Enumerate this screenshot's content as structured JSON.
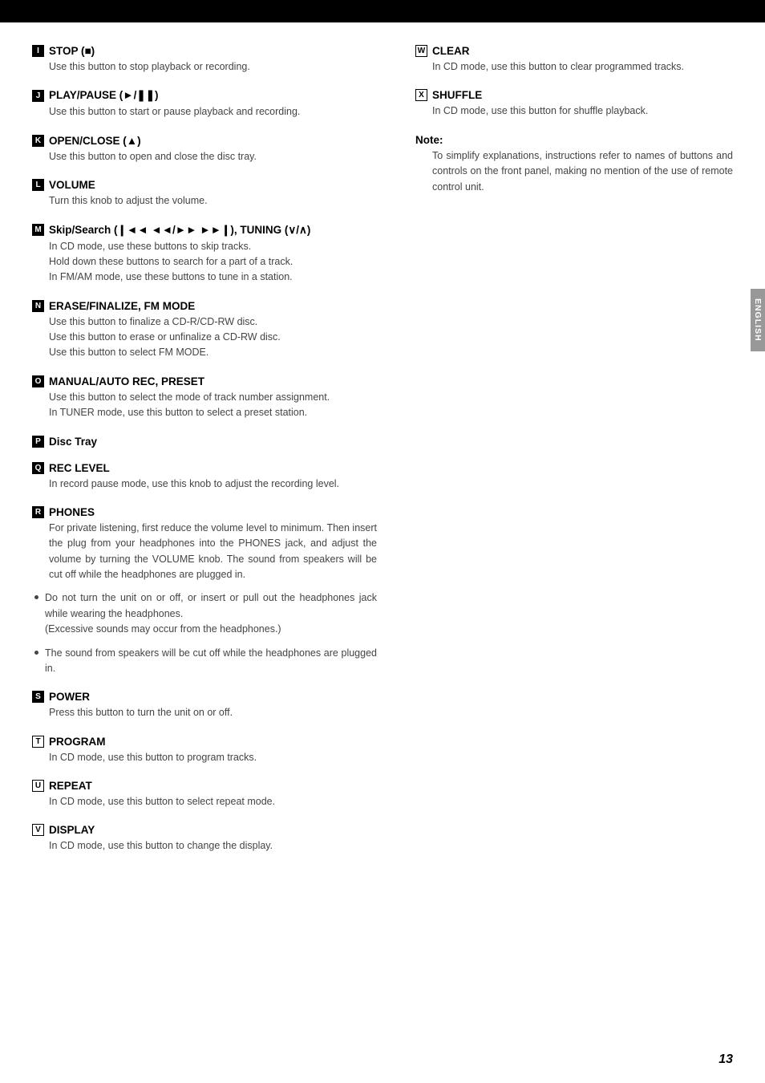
{
  "left": [
    {
      "letter": "I",
      "boxStyle": "filled",
      "label": "STOP (<span class='icon'>■</span>)",
      "desc": [
        "Use this button to stop playback or recording."
      ]
    },
    {
      "letter": "J",
      "boxStyle": "filled",
      "label": "PLAY/PAUSE (<span class='icon'>►/❚❚</span>)",
      "desc": [
        "Use this button to start or pause playback and recording."
      ]
    },
    {
      "letter": "K",
      "boxStyle": "filled",
      "label": "OPEN/CLOSE (<span class='icon'>▲</span>)",
      "desc": [
        "Use this button to open and close the disc tray."
      ]
    },
    {
      "letter": "L",
      "boxStyle": "filled",
      "label": "VOLUME",
      "desc": [
        "Turn this knob to adjust the volume."
      ]
    },
    {
      "letter": "M",
      "boxStyle": "filled",
      "label": "Skip/Search (<span class='icon'>❙◄◄ ◄◄/►► ►►❙</span>), TUNING (<span class='icon'>∨/∧</span>)",
      "desc": [
        "In CD mode, use these buttons to skip tracks.",
        "Hold down these buttons to search for a part of a track.",
        "In FM/AM mode, use these buttons to tune in a station."
      ]
    },
    {
      "letter": "N",
      "boxStyle": "filled",
      "label": "ERASE/FINALIZE, FM MODE",
      "desc": [
        "Use this button to finalize a CD-R/CD-RW disc.",
        "Use this button to erase or unfinalize a CD-RW disc.",
        "Use this button to select FM MODE."
      ]
    },
    {
      "letter": "O",
      "boxStyle": "filled",
      "label": "MANUAL/AUTO REC, PRESET",
      "desc": [
        "Use this button to select the mode of track number assignment.",
        "In TUNER mode, use this button to select a preset station."
      ]
    },
    {
      "letter": "P",
      "boxStyle": "filled",
      "label": "Disc Tray",
      "desc": []
    },
    {
      "letter": "Q",
      "boxStyle": "filled",
      "label": "REC LEVEL",
      "desc": [
        "In record pause mode, use this knob to adjust the recording level."
      ]
    },
    {
      "letter": "R",
      "boxStyle": "filled",
      "label": "PHONES",
      "desc": [
        "For private listening, first reduce the volume level to minimum. Then insert the plug from your headphones into the PHONES jack, and adjust the volume by turning the VOLUME knob. The sound from speakers will be cut off while the headphones are plugged in."
      ],
      "justify": true,
      "bullets": [
        "Do not turn the unit on or off, or insert or pull out the headphones jack while wearing the headphones.<br>(Excessive sounds may occur from the headphones.)",
        "The sound from speakers will be cut off while the headphones are plugged in."
      ]
    },
    {
      "letter": "S",
      "boxStyle": "filled",
      "label": "POWER",
      "desc": [
        "Press this button to turn the unit on or off."
      ]
    },
    {
      "letter": "T",
      "boxStyle": "outline",
      "label": "PROGRAM",
      "desc": [
        "In CD mode, use this button to program tracks."
      ]
    },
    {
      "letter": "U",
      "boxStyle": "outline",
      "label": "REPEAT",
      "desc": [
        "In CD mode, use this button to select repeat mode."
      ]
    },
    {
      "letter": "V",
      "boxStyle": "outline",
      "label": "DISPLAY",
      "desc": [
        "In CD mode, use this button to change the display."
      ]
    }
  ],
  "right": [
    {
      "letter": "W",
      "boxStyle": "outline",
      "label": "CLEAR",
      "desc": [
        "In CD mode, use this button to clear programmed tracks."
      ]
    },
    {
      "letter": "X",
      "boxStyle": "outline",
      "label": "SHUFFLE",
      "desc": [
        "In CD mode, use this button for shuffle playback."
      ]
    }
  ],
  "note": {
    "label": "Note:",
    "text": "To simplify explanations, instructions refer to names of buttons and controls on the front panel, making no mention of the use of remote control unit."
  },
  "sideTab": "ENGLISH",
  "pageNum": "13"
}
